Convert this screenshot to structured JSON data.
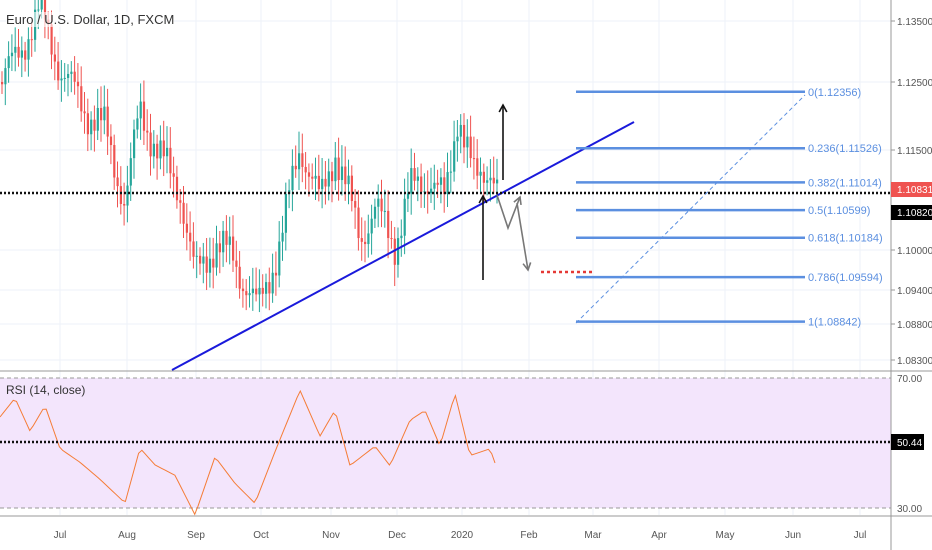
{
  "header": {
    "symbol_title": "Euro / U.S. Dollar, 1D, FXCM"
  },
  "rsi": {
    "title": "RSI (14, close)",
    "value_label": "50.44",
    "levels": [
      "70.00",
      "30.00"
    ]
  },
  "price_axis": {
    "ticks": [
      "1.13500",
      "1.12500",
      "1.11500",
      "1.10000",
      "1.09400",
      "1.08800",
      "1.08300"
    ],
    "last_price": "1.10831",
    "crosshair_price": "1.10820"
  },
  "time_axis": [
    "Jul",
    "Aug",
    "Sep",
    "Oct",
    "Nov",
    "Dec",
    "2020",
    "Feb",
    "Mar",
    "Apr",
    "May",
    "Jun",
    "Jul"
  ],
  "fib": [
    {
      "label": "0(1.12356)",
      "value": 1.12356
    },
    {
      "label": "0.236(1.11526)",
      "value": 1.11526
    },
    {
      "label": "0.382(1.11014)",
      "value": 1.11014
    },
    {
      "label": "0.5(1.10599)",
      "value": 1.10599
    },
    {
      "label": "0.618(1.10184)",
      "value": 1.10184
    },
    {
      "label": "0.786(1.09594)",
      "value": 1.09594
    },
    {
      "label": "1(1.08842)",
      "value": 1.08842
    }
  ],
  "colors": {
    "up": "#26a69a",
    "down": "#ef5350",
    "fib": "#5b8fe0",
    "trend": "#1a1adb",
    "rsi_line": "#f57c36",
    "rsi_bg": "#f3e5fc",
    "last_price_bg": "#ef5350"
  }
}
